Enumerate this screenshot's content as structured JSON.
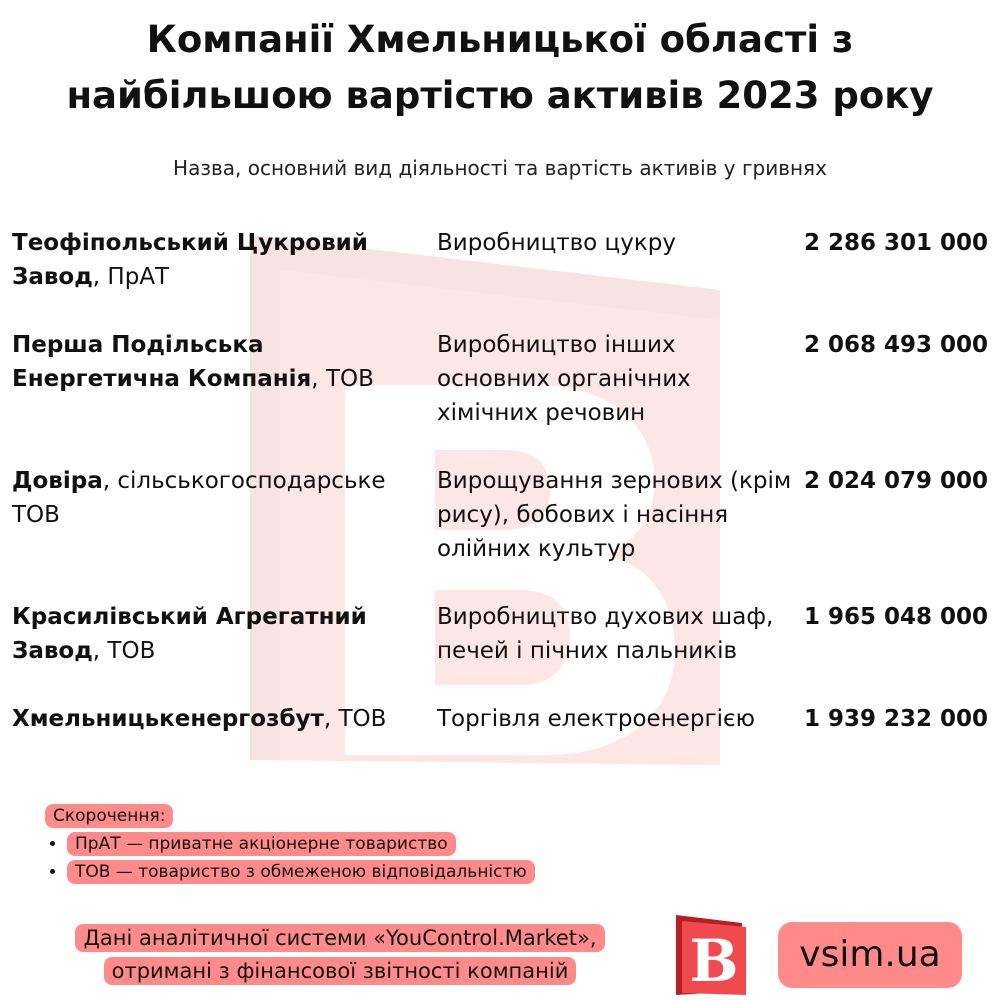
{
  "title_line1": "Компанії Хмельницької області з",
  "title_line2": "найбільшою вартістю активів 2023 року",
  "subtitle": "Назва, основний вид діяльності та вартість активів у гривнях",
  "rows": [
    {
      "name_bold": "Теофіпольський Цукровий Завод",
      "name_suffix": ", ПрАТ",
      "activity": "Виробництво цукру",
      "value": "2 286 301 000"
    },
    {
      "name_bold": "Перша Подільська Енергетична Компанія",
      "name_suffix": ", ТОВ",
      "activity": "Виробництво інших основних органічних хімічних речовин",
      "value": "2 068 493 000"
    },
    {
      "name_bold": "Довіра",
      "name_suffix": ", сільськогосподарське ТОВ",
      "activity": "Вирощування зернових (крім рису), бобових і насіння олійних культур",
      "value": "2 024 079 000"
    },
    {
      "name_bold": "Красилівський Агрегатний Завод",
      "name_suffix": ", ТОВ",
      "activity": "Виробництво духових шаф, печей і пічних пальників",
      "value": "1 965 048 000"
    },
    {
      "name_bold": "Хмельницькенергозбут",
      "name_suffix": ", ТОВ",
      "activity": "Торгівля електроенергією",
      "value": "1 939 232 000"
    }
  ],
  "abbreviations": {
    "heading": "Скорочення:",
    "items": [
      "ПрАТ — приватне акціонерне товариство",
      "ТОВ — товариство з обмеженою відповідальністю"
    ]
  },
  "source_line1": "Дані аналітичної системи «YouControl.Market»,",
  "source_line2": "отримані з фінансової звітності компаній",
  "logo_letter": "B",
  "site": "vsim.ua",
  "colors": {
    "highlight": "#ff8a8a",
    "logo_red": "#e8383d",
    "watermark": "#fde3e3"
  }
}
